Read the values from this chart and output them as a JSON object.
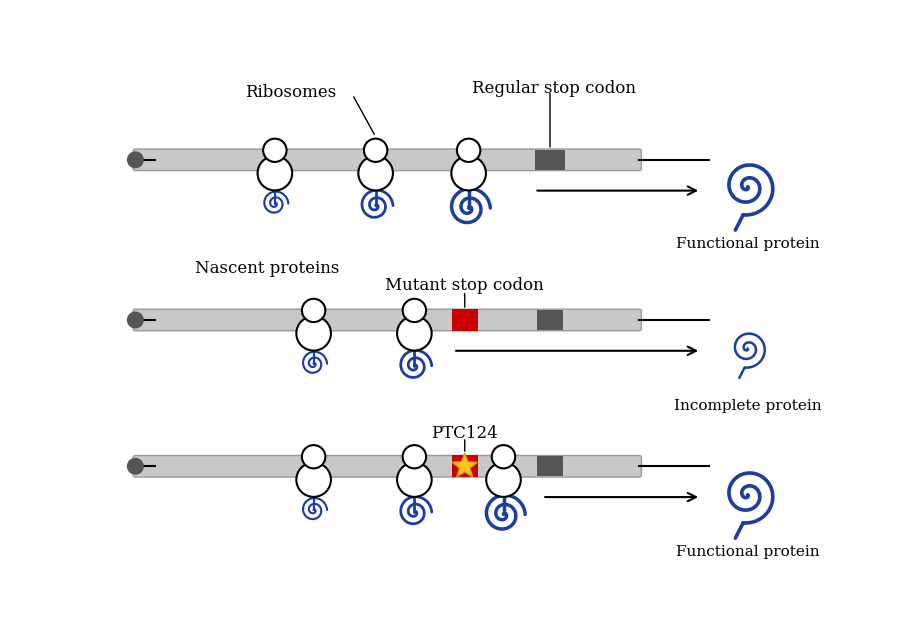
{
  "background_color": "#ffffff",
  "mrna_color": "#c8c8c8",
  "mrna_border_color": "#aaaaaa",
  "ribosome_color": "#ffffff",
  "ribosome_edge_color": "#000000",
  "protein_color": "#1a3fa0",
  "stop_codon_regular_color": "#555555",
  "stop_codon_mutant_color": "#cc0000",
  "dot_color": "#555555",
  "arrow_color": "#000000",
  "label_ribosomes": "Ribosomes",
  "label_nascent": "Nascent proteins",
  "label_regular_stop": "Regular stop codon",
  "label_mutant_stop": "Mutant stop codon",
  "label_ptc124": "PTC124",
  "label_functional": "Functional protein",
  "label_incomplete": "Incomplete protein"
}
